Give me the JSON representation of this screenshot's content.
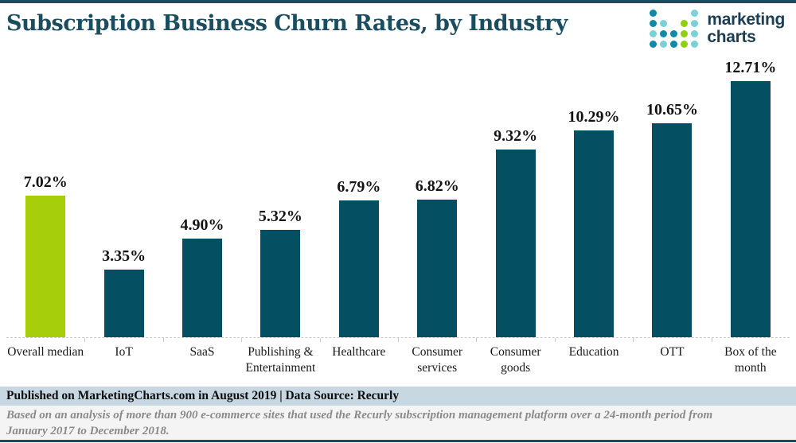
{
  "header": {
    "title": "Subscription Business Churn Rates, by Industry",
    "logo": {
      "line1": "marketing",
      "line2": "charts",
      "dot_colors": {
        "teal": "#0e89a7",
        "cyan": "#7cd1d8",
        "green": "#91d00e"
      },
      "dot_grid": [
        [
          "teal",
          null,
          null,
          null,
          "cyan"
        ],
        [
          "teal",
          "cyan",
          null,
          "green",
          "cyan"
        ],
        [
          "cyan",
          "teal",
          "teal",
          "green",
          "cyan"
        ],
        [
          "teal",
          "cyan",
          "teal",
          "green",
          "cyan"
        ]
      ]
    }
  },
  "chart_data": {
    "type": "bar",
    "title": "Subscription Business Churn Rates, by Industry",
    "categories": [
      "Overall median",
      "IoT",
      "SaaS",
      "Publishing & Entertainment",
      "Healthcare",
      "Consumer services",
      "Consumer goods",
      "Education",
      "OTT",
      "Box of the month"
    ],
    "values": [
      7.02,
      3.35,
      4.9,
      5.32,
      6.79,
      6.82,
      9.32,
      10.29,
      10.65,
      12.71
    ],
    "value_labels": [
      "7.02%",
      "3.35%",
      "4.90%",
      "5.32%",
      "6.79%",
      "6.82%",
      "9.32%",
      "10.29%",
      "10.65%",
      "12.71%"
    ],
    "unit": "%",
    "highlight_index": 0,
    "bar_color": "#054f63",
    "highlight_color": "#a6ce0b",
    "xlabel": "",
    "ylabel": "",
    "ylim": [
      0,
      13.9
    ],
    "grid": false,
    "baseline_style": "dashed",
    "legend": "none"
  },
  "footer": {
    "published": "Published on MarketingCharts.com in August 2019 | Data Source: Recurly",
    "note_line1": "Based on an analysis of more than 900 e-commerce sites that used the Recurly subscription management platform over a 24-month period from",
    "note_line2": "January 2017 to December 2018."
  }
}
